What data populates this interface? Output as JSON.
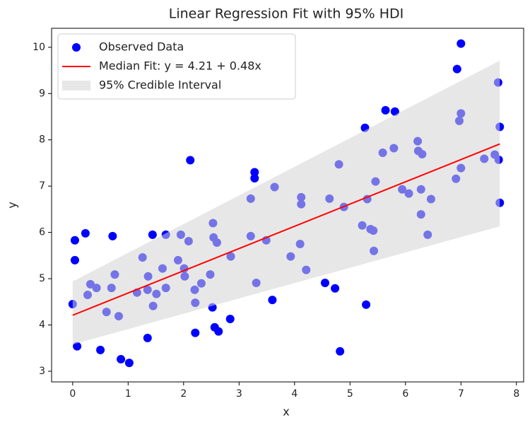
{
  "chart_data": {
    "type": "scatter",
    "title": "Linear Regression Fit with 95% HDI",
    "xlabel": "x",
    "ylabel": "y",
    "xlim": [
      -0.38,
      8.13
    ],
    "ylim": [
      2.77,
      10.41
    ],
    "xticks": [
      0,
      1,
      2,
      3,
      4,
      5,
      6,
      7,
      8
    ],
    "yticks": [
      3,
      4,
      5,
      6,
      7,
      8,
      9,
      10
    ],
    "legend": "upper left",
    "series": [
      {
        "name": "Observed Data",
        "type": "scatter",
        "color": "#0000ff",
        "x": [
          0,
          0.04,
          0.04,
          0.08,
          0.23,
          0.27,
          0.32,
          0.43,
          0.5,
          0.61,
          0.7,
          0.72,
          0.76,
          0.83,
          0.87,
          1.02,
          1.16,
          1.26,
          1.35,
          1.36,
          1.35,
          1.44,
          1.45,
          1.51,
          1.62,
          1.68,
          1.68,
          1.9,
          1.95,
          2.01,
          2.02,
          2.09,
          2.12,
          2.2,
          2.21,
          2.21,
          2.32,
          2.48,
          2.52,
          2.53,
          2.54,
          2.56,
          2.6,
          2.63,
          2.84,
          2.85,
          3.21,
          3.21,
          3.28,
          3.28,
          3.31,
          3.49,
          3.6,
          3.64,
          3.93,
          4.1,
          4.12,
          4.12,
          4.21,
          4.55,
          4.63,
          4.73,
          4.8,
          4.82,
          4.89,
          5.22,
          5.27,
          5.29,
          5.31,
          5.37,
          5.42,
          5.43,
          5.46,
          5.59,
          5.64,
          5.79,
          5.81,
          5.94,
          6.06,
          6.22,
          6.23,
          6.28,
          6.3,
          6.28,
          6.4,
          6.46,
          6.91,
          6.93,
          6.97,
          7.0,
          7.0,
          7.0,
          7.42,
          7.61,
          7.67,
          7.7,
          7.68,
          7.7
        ],
        "values": [
          4.45,
          5.83,
          5.4,
          3.54,
          5.98,
          4.65,
          4.88,
          4.8,
          3.46,
          4.28,
          4.8,
          5.92,
          5.09,
          4.19,
          3.26,
          3.18,
          4.7,
          5.46,
          4.76,
          5.05,
          3.72,
          5.95,
          4.41,
          4.67,
          5.22,
          4.8,
          5.95,
          5.4,
          5.95,
          5.22,
          5.05,
          5.81,
          7.56,
          4.76,
          4.48,
          3.83,
          4.9,
          5.09,
          4.38,
          6.2,
          5.89,
          3.95,
          5.78,
          3.86,
          4.13,
          5.48,
          6.73,
          5.92,
          7.3,
          7.17,
          4.91,
          5.83,
          4.54,
          6.98,
          5.48,
          5.75,
          6.76,
          6.61,
          5.19,
          4.91,
          6.73,
          4.79,
          7.47,
          3.43,
          6.55,
          6.15,
          8.26,
          4.44,
          6.72,
          6.07,
          6.04,
          5.6,
          7.1,
          7.72,
          8.64,
          7.82,
          8.61,
          6.93,
          6.84,
          7.97,
          7.76,
          6.93,
          7.69,
          6.39,
          5.95,
          6.72,
          7.16,
          9.53,
          8.41,
          8.57,
          7.39,
          10.08,
          7.59,
          7.68,
          9.24,
          8.28,
          7.57,
          6.64
        ]
      },
      {
        "name": "Median Fit: y = 4.21 + 0.48x",
        "type": "line",
        "color": "#ff0000",
        "x": [
          0,
          7.7
        ],
        "values": [
          4.21,
          7.91
        ]
      },
      {
        "name": "95% Credible Interval",
        "type": "band",
        "color": "#d3d3d3",
        "x": [
          0,
          7.7
        ],
        "lower": [
          3.58,
          6.13
        ],
        "upper": [
          4.94,
          9.71
        ]
      }
    ]
  }
}
